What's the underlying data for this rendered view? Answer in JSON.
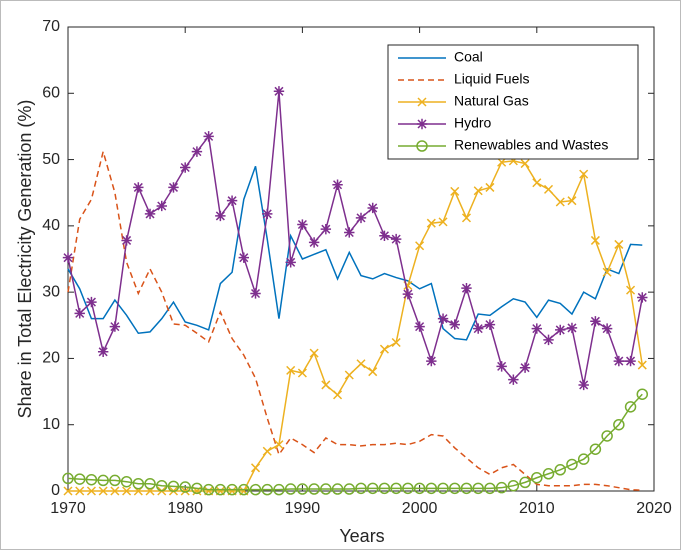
{
  "chart_data": {
    "type": "line",
    "x_label": "Years",
    "y_label": "Share in Total Electricity Generation (%)",
    "x": [
      1970,
      1971,
      1972,
      1973,
      1974,
      1975,
      1976,
      1977,
      1978,
      1979,
      1980,
      1981,
      1982,
      1983,
      1984,
      1985,
      1986,
      1987,
      1988,
      1989,
      1990,
      1991,
      1992,
      1993,
      1994,
      1995,
      1996,
      1997,
      1998,
      1999,
      2000,
      2001,
      2002,
      2003,
      2004,
      2005,
      2006,
      2007,
      2008,
      2009,
      2010,
      2011,
      2012,
      2013,
      2014,
      2015,
      2016,
      2017,
      2018,
      2019
    ],
    "series": [
      {
        "name": "Coal",
        "color": "#0072BD",
        "line_style": "solid",
        "marker": "none",
        "values": [
          33.5,
          30.5,
          26,
          26,
          28.8,
          26.5,
          23.8,
          24,
          26,
          28.5,
          25.5,
          25,
          24.3,
          31.3,
          33,
          44,
          49,
          38,
          26,
          38.5,
          35,
          35.7,
          36.4,
          32,
          36,
          32.5,
          32,
          32.8,
          32.2,
          31.7,
          30.5,
          31.3,
          24.5,
          23,
          22.8,
          26.7,
          26.5,
          27.8,
          29,
          28.5,
          26.2,
          28.8,
          28.3,
          26.7,
          30,
          29,
          33.5,
          32.8,
          37.2,
          37.1
        ]
      },
      {
        "name": "Liquid Fuels",
        "color": "#D95319",
        "line_style": "dashed",
        "marker": "none",
        "values": [
          30,
          41,
          44,
          51.2,
          45,
          34.5,
          29.8,
          33.5,
          30,
          25.2,
          25,
          23.8,
          22.5,
          27,
          23,
          20.5,
          17,
          11,
          5.5,
          8,
          7,
          5.8,
          8,
          7,
          7,
          6.8,
          7,
          7,
          7.2,
          7,
          7.5,
          8.5,
          8.3,
          6.5,
          5,
          3.5,
          2.5,
          3.5,
          4,
          2.5,
          1,
          0.8,
          0.8,
          0.8,
          1,
          1,
          0.8,
          0.5,
          0.2,
          0.1
        ]
      },
      {
        "name": "Natural Gas",
        "color": "#EDB120",
        "line_style": "solid",
        "marker": "x",
        "values": [
          0,
          0,
          0,
          0,
          0,
          0,
          0,
          0,
          0,
          0,
          0,
          0,
          0,
          0,
          0,
          0,
          3.5,
          6,
          7,
          18.2,
          17.8,
          20.8,
          16,
          14.5,
          17.5,
          19.2,
          18,
          21.4,
          22.4,
          31,
          37,
          40.4,
          40.6,
          45.2,
          41.2,
          45.3,
          45.8,
          49.6,
          49.8,
          49.4,
          46.5,
          45.5,
          43.6,
          43.8,
          47.8,
          37.8,
          33,
          37.2,
          30.3,
          19
        ]
      },
      {
        "name": "Hydro",
        "color": "#7E2F8E",
        "line_style": "solid",
        "marker": "star",
        "values": [
          35.2,
          26.8,
          28.5,
          21,
          24.8,
          37.8,
          45.8,
          41.8,
          43,
          45.8,
          48.8,
          51.2,
          53.5,
          41.5,
          43.8,
          35.2,
          29.8,
          41.8,
          60.3,
          34.5,
          40.2,
          37.5,
          39.5,
          46.2,
          39,
          41.2,
          42.7,
          38.5,
          38,
          29.7,
          24.8,
          19.6,
          26,
          25.1,
          30.6,
          24.5,
          25.1,
          18.8,
          16.8,
          18.6,
          24.5,
          22.8,
          24.3,
          24.6,
          16,
          25.6,
          24.5,
          19.6,
          19.6,
          29.2
        ]
      },
      {
        "name": "Renewables and Wastes",
        "color": "#77AC30",
        "line_style": "solid",
        "marker": "circle",
        "values": [
          1.9,
          1.8,
          1.7,
          1.6,
          1.6,
          1.4,
          1.1,
          1.1,
          0.8,
          0.7,
          0.6,
          0.4,
          0.2,
          0.2,
          0.2,
          0.2,
          0.2,
          0.2,
          0.2,
          0.3,
          0.3,
          0.3,
          0.3,
          0.3,
          0.3,
          0.4,
          0.4,
          0.4,
          0.4,
          0.4,
          0.4,
          0.4,
          0.4,
          0.4,
          0.4,
          0.4,
          0.4,
          0.5,
          0.8,
          1.3,
          2,
          2.6,
          3.2,
          4,
          4.8,
          6.3,
          8.3,
          10,
          12.7,
          14.6
        ]
      }
    ],
    "xlim": [
      1970,
      2020
    ],
    "xticks": [
      1970,
      1980,
      1990,
      2000,
      2010,
      2020
    ],
    "ylim": [
      0,
      70
    ],
    "yticks": [
      0,
      10,
      20,
      30,
      40,
      50,
      60,
      70
    ],
    "legend": "upper right"
  }
}
